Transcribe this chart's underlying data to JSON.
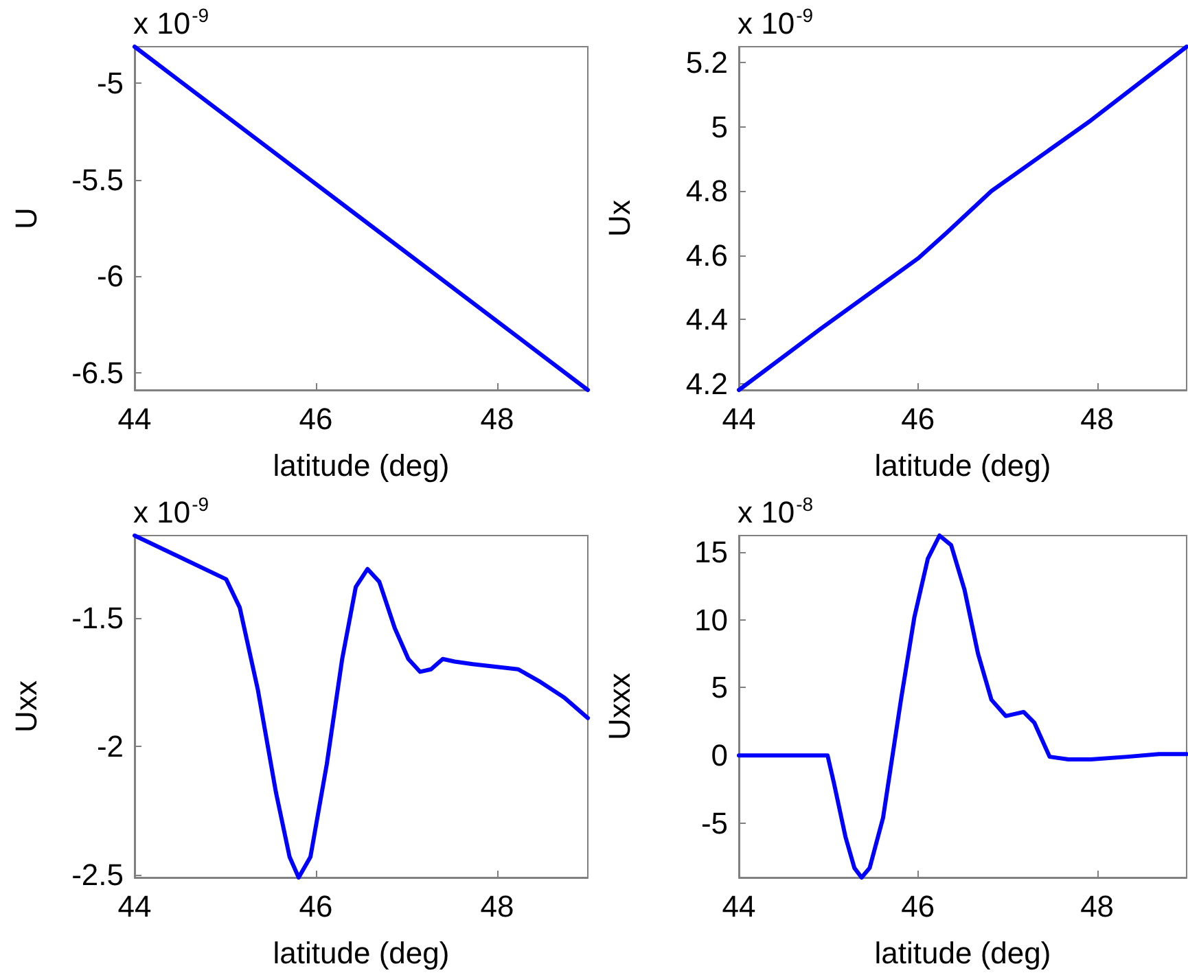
{
  "chart_data": [
    {
      "type": "line",
      "xlabel": "latitude (deg)",
      "ylabel": "U",
      "annotations": [
        "x 10$^{-9}$"
      ],
      "color": "#0000ff",
      "marker": "none",
      "xlim": [
        44,
        49
      ],
      "xticks": [
        44,
        46,
        48
      ],
      "ylim": [
        -6.59,
        -4.81
      ],
      "yticks": [
        -6.5,
        -6,
        -5.5,
        -5
      ],
      "x": [
        44,
        49
      ],
      "values": [
        -4.81,
        -6.59
      ]
    },
    {
      "type": "line",
      "xlabel": "latitude (deg)",
      "ylabel": "Ux",
      "annotations": [
        "x 10$^{-9}$"
      ],
      "color": "#0000ff",
      "marker": "none",
      "xlim": [
        44,
        49
      ],
      "xticks": [
        44,
        46,
        48
      ],
      "ylim": [
        4.18,
        5.25
      ],
      "yticks": [
        4.2,
        4.4,
        4.6,
        4.8,
        5,
        5.2
      ],
      "x": [
        44,
        44.91,
        46,
        46.32,
        46.82,
        47.93,
        49
      ],
      "values": [
        4.18,
        4.37,
        4.59,
        4.67,
        4.8,
        5.02,
        5.25
      ]
    },
    {
      "type": "line",
      "xlabel": "latitude (deg)",
      "ylabel": "Uxx",
      "annotations": [
        "x 10$^{-9}$"
      ],
      "color": "#0000ff",
      "marker": "none",
      "xlim": [
        44,
        49
      ],
      "xticks": [
        44,
        46,
        48
      ],
      "ylim": [
        -2.51,
        -1.18
      ],
      "yticks": [
        -2.5,
        -2,
        -1.5
      ],
      "x": [
        44,
        45.01,
        45.16,
        45.36,
        45.56,
        45.71,
        45.81,
        45.94,
        46.12,
        46.29,
        46.44,
        46.57,
        46.7,
        46.87,
        47.02,
        47.15,
        47.27,
        47.4,
        47.53,
        47.73,
        47.98,
        48.23,
        48.48,
        48.74,
        49
      ],
      "values": [
        -1.18,
        -1.35,
        -1.46,
        -1.78,
        -2.18,
        -2.43,
        -2.51,
        -2.43,
        -2.07,
        -1.66,
        -1.38,
        -1.31,
        -1.36,
        -1.54,
        -1.66,
        -1.71,
        -1.7,
        -1.66,
        -1.67,
        -1.68,
        -1.69,
        -1.7,
        -1.75,
        -1.81,
        -1.89
      ]
    },
    {
      "type": "line",
      "xlabel": "latitude (deg)",
      "ylabel": "Uxxx",
      "annotations": [
        "x 10$^{-8}$"
      ],
      "color": "#0000ff",
      "marker": "none",
      "xlim": [
        44,
        49
      ],
      "xticks": [
        44,
        46,
        48
      ],
      "ylim": [
        -9,
        16.2
      ],
      "yticks": [
        -5,
        0,
        5,
        10,
        15
      ],
      "x": [
        44,
        44.99,
        45.06,
        45.19,
        45.29,
        45.37,
        45.46,
        45.61,
        45.81,
        45.96,
        46.11,
        46.24,
        46.37,
        46.52,
        46.67,
        46.82,
        46.98,
        47.18,
        47.3,
        47.47,
        47.68,
        47.93,
        48.34,
        48.69,
        49
      ],
      "values": [
        0,
        0,
        -2,
        -6,
        -8.3,
        -9,
        -8.3,
        -4.6,
        4.1,
        10.2,
        14.5,
        16.2,
        15.5,
        12.2,
        7.5,
        4.1,
        2.9,
        3.2,
        2.4,
        -0.1,
        -0.3,
        -0.3,
        -0.1,
        0.1,
        0.1
      ]
    }
  ]
}
